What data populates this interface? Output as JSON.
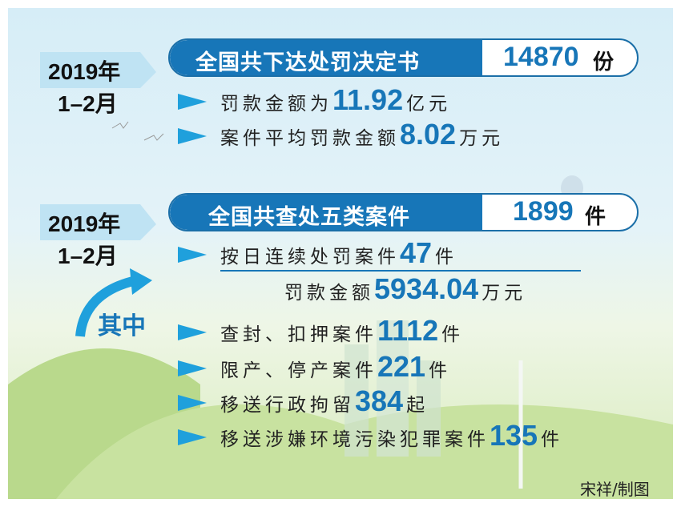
{
  "sections": [
    {
      "year": "2019年",
      "period": "1–2月",
      "heading": "全国共下达处罚决定书",
      "total": 14870,
      "total_unit": "份",
      "items": [
        {
          "label": "罚款金额为",
          "value": 11.92,
          "unit": "亿元"
        },
        {
          "label": "案件平均罚款金额",
          "value": 8.02,
          "unit": "万元"
        }
      ]
    },
    {
      "year": "2019年",
      "period": "1–2月",
      "heading": "全国共查处五类案件",
      "total": 1899,
      "total_unit": "件",
      "items": [
        {
          "label": "按日连续处罚案件",
          "value": 47,
          "unit": "件",
          "sub_label": "罚款金额",
          "sub_value": 5934.04,
          "sub_unit": "万元"
        },
        {
          "label": "查封、扣押案件",
          "value": 1112,
          "unit": "件"
        },
        {
          "label": "限产、停产案件",
          "value": 221,
          "unit": "件"
        },
        {
          "label": "移送行政拘留",
          "value": 384,
          "unit": "起"
        },
        {
          "label": "移送涉嫌环境污染犯罪案件",
          "value": 135,
          "unit": "件"
        }
      ]
    }
  ],
  "among": "其中",
  "credit": "宋祥/制图"
}
